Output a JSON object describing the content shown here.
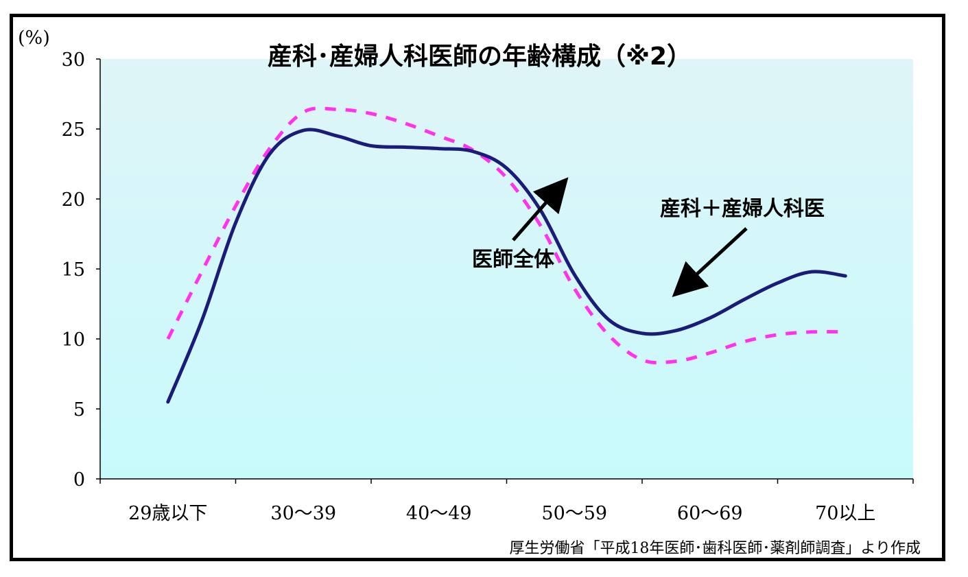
{
  "chart_data": {
    "type": "line",
    "title": "産科･産婦人科医師の年齢構成（※2）",
    "ylabel": "(%)",
    "xlabel": "",
    "ylim": [
      0,
      30
    ],
    "yticks": [
      "0",
      "5",
      "10",
      "15",
      "20",
      "25",
      "30"
    ],
    "categories": [
      "29歳以下",
      "30～39",
      "40～49",
      "50～59",
      "60～69",
      "70以上"
    ],
    "x": [
      0,
      0.25,
      0.5,
      0.75,
      1.0,
      1.25,
      1.5,
      1.75,
      2.0,
      2.25,
      2.5,
      2.75,
      3.0,
      3.25,
      3.5,
      3.75,
      4.0,
      4.25,
      4.5,
      4.75,
      5.0
    ],
    "series": [
      {
        "name": "産科＋産婦人科医",
        "style": "solid",
        "color": "#1b1b7a",
        "values": [
          5.5,
          11.3,
          18.3,
          23.2,
          24.9,
          24.5,
          23.8,
          23.7,
          23.6,
          23.4,
          22.2,
          19.2,
          14.6,
          11.4,
          10.4,
          10.6,
          11.5,
          12.8,
          14.0,
          14.8,
          14.5
        ]
      },
      {
        "name": "医師全体",
        "style": "dashed",
        "color": "#ff33ee",
        "values": [
          10.0,
          14.8,
          19.5,
          23.6,
          26.2,
          26.4,
          26.1,
          25.4,
          24.5,
          23.5,
          21.5,
          18.1,
          13.6,
          10.3,
          8.5,
          8.4,
          9.0,
          9.8,
          10.3,
          10.5,
          10.5
        ]
      }
    ],
    "annotations": [
      {
        "text": "医師全体",
        "target_series": "医師全体"
      },
      {
        "text": "産科＋産婦人科医",
        "target_series": "産科＋産婦人科医"
      }
    ],
    "source_note": "厚生労働省「平成18年医師･歯科医師･薬剤師調査」より作成",
    "background_gradient": [
      "#dff5f8",
      "#c8fafc"
    ],
    "grid": false,
    "legend": "none"
  }
}
